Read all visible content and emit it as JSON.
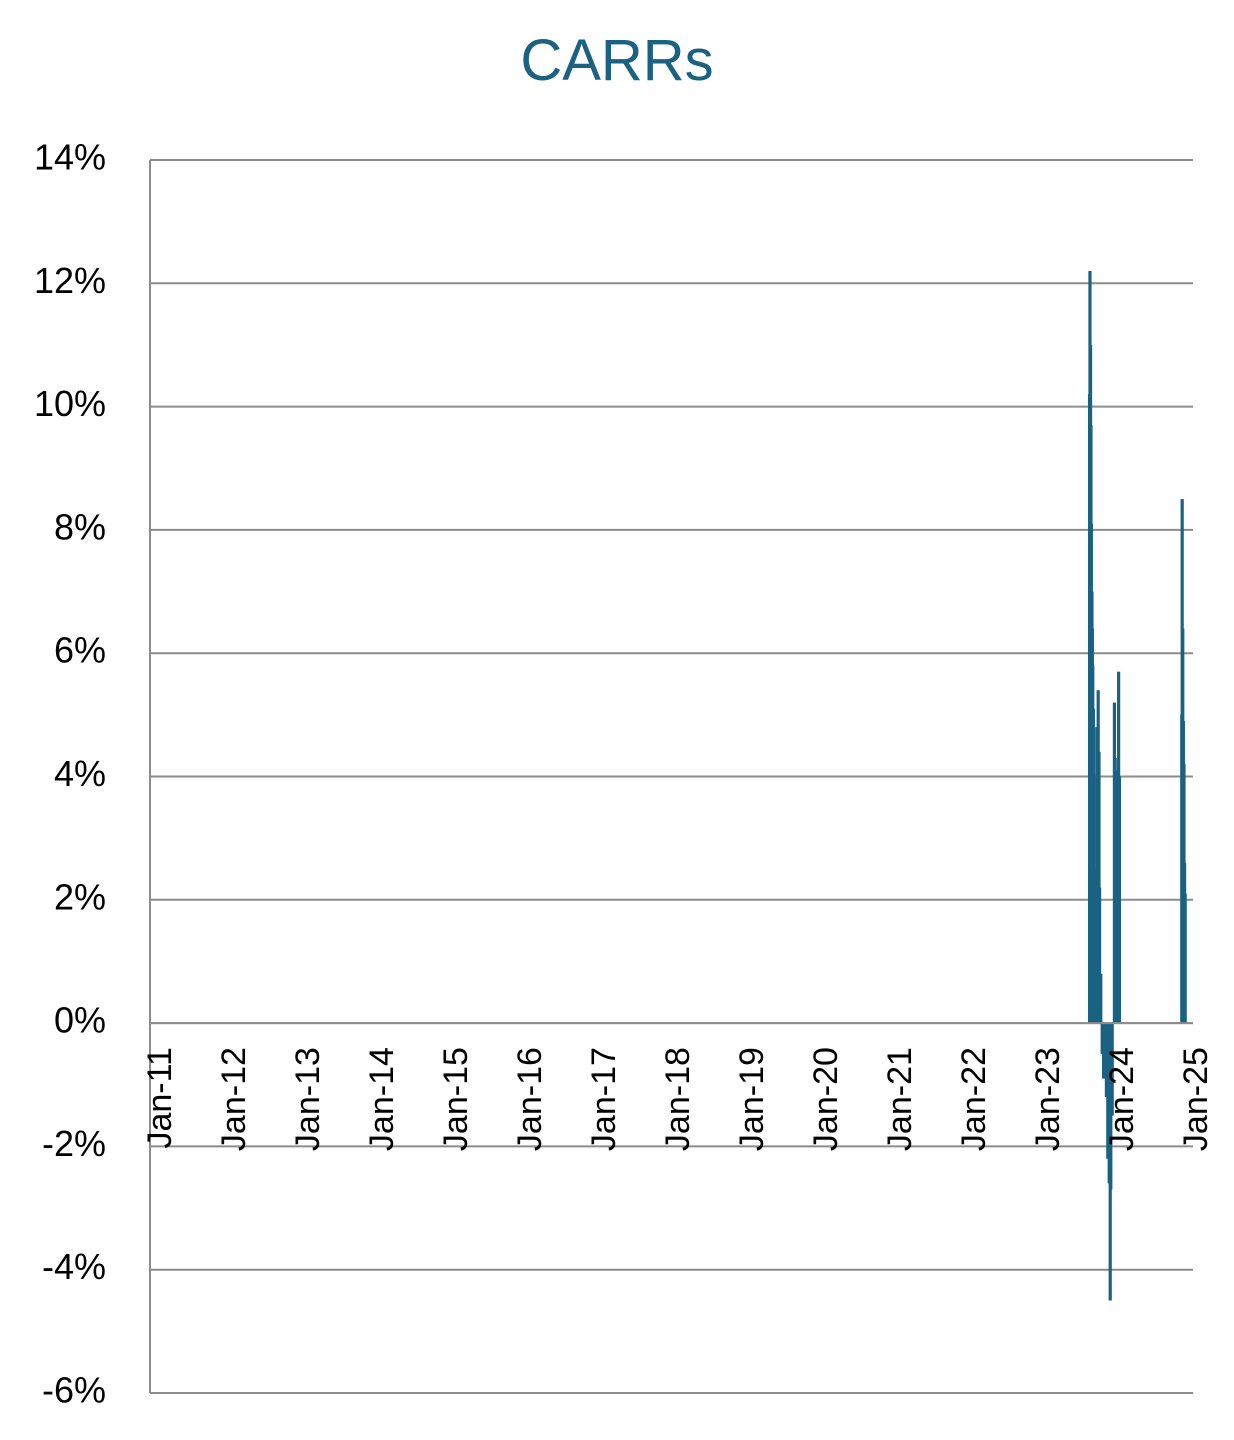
{
  "chart_data": {
    "type": "bar",
    "title": "CARRs",
    "xlabel": "",
    "ylabel": "",
    "x_tick_labels": [
      "Jan-11",
      "Jan-12",
      "Jan-13",
      "Jan-14",
      "Jan-15",
      "Jan-16",
      "Jan-17",
      "Jan-18",
      "Jan-19",
      "Jan-20",
      "Jan-21",
      "Jan-22",
      "Jan-23",
      "Jan-24",
      "Jan-25"
    ],
    "y_tick_labels": [
      "14%",
      "12%",
      "10%",
      "8%",
      "6%",
      "4%",
      "2%",
      "0%",
      "-2%",
      "-4%",
      "-6%"
    ],
    "ylim": [
      -6,
      14
    ],
    "xlim": [
      "2011-01-01",
      "2025-03-31"
    ],
    "grid": true,
    "legend": "none",
    "value_unit": "%",
    "colors": {
      "bars": "#1b6282",
      "title": "#1b6282",
      "grid": "#8c8c8c",
      "axis": "#8c8c8c"
    },
    "series": [
      {
        "points": [
          {
            "x": "2023-11-01",
            "y": 10.2
          },
          {
            "x": "2023-11-03",
            "y": 12.2
          },
          {
            "x": "2023-11-06",
            "y": 11.0
          },
          {
            "x": "2023-11-08",
            "y": 9.7
          },
          {
            "x": "2023-11-10",
            "y": 8.1
          },
          {
            "x": "2023-11-13",
            "y": 7.0
          },
          {
            "x": "2023-11-15",
            "y": 6.4
          },
          {
            "x": "2023-11-17",
            "y": 5.8
          },
          {
            "x": "2023-11-20",
            "y": 5.1
          },
          {
            "x": "2023-11-22",
            "y": 4.0
          },
          {
            "x": "2023-11-27",
            "y": 2.5
          },
          {
            "x": "2023-11-30",
            "y": 1.5
          },
          {
            "x": "2023-12-04",
            "y": 0.6
          },
          {
            "x": "2023-12-07",
            "y": 4.8
          },
          {
            "x": "2023-12-11",
            "y": 3.2
          },
          {
            "x": "2023-12-14",
            "y": 5.4
          },
          {
            "x": "2023-12-18",
            "y": 4.4
          },
          {
            "x": "2023-12-21",
            "y": 2.2
          },
          {
            "x": "2023-12-27",
            "y": 0.8
          },
          {
            "x": "2024-01-03",
            "y": -0.5
          },
          {
            "x": "2024-01-10",
            "y": -0.9
          },
          {
            "x": "2024-01-17",
            "y": -0.3
          },
          {
            "x": "2024-01-24",
            "y": -1.2
          },
          {
            "x": "2024-01-31",
            "y": -2.2
          },
          {
            "x": "2024-02-07",
            "y": -2.6
          },
          {
            "x": "2024-02-12",
            "y": -4.5
          },
          {
            "x": "2024-02-15",
            "y": -2.7
          },
          {
            "x": "2024-02-22",
            "y": -1.5
          },
          {
            "x": "2024-03-04",
            "y": 5.2
          },
          {
            "x": "2024-03-08",
            "y": 4.3
          },
          {
            "x": "2024-03-12",
            "y": 4.1
          },
          {
            "x": "2024-03-18",
            "y": 3.6
          },
          {
            "x": "2024-03-25",
            "y": 5.7
          },
          {
            "x": "2024-03-29",
            "y": 4.0
          },
          {
            "x": "2025-02-03",
            "y": 5.0
          },
          {
            "x": "2025-02-05",
            "y": 8.5
          },
          {
            "x": "2025-02-08",
            "y": 6.4
          },
          {
            "x": "2025-02-11",
            "y": 4.9
          },
          {
            "x": "2025-02-14",
            "y": 4.2
          },
          {
            "x": "2025-02-17",
            "y": 2.6
          },
          {
            "x": "2025-02-20",
            "y": 2.1
          }
        ]
      }
    ]
  }
}
